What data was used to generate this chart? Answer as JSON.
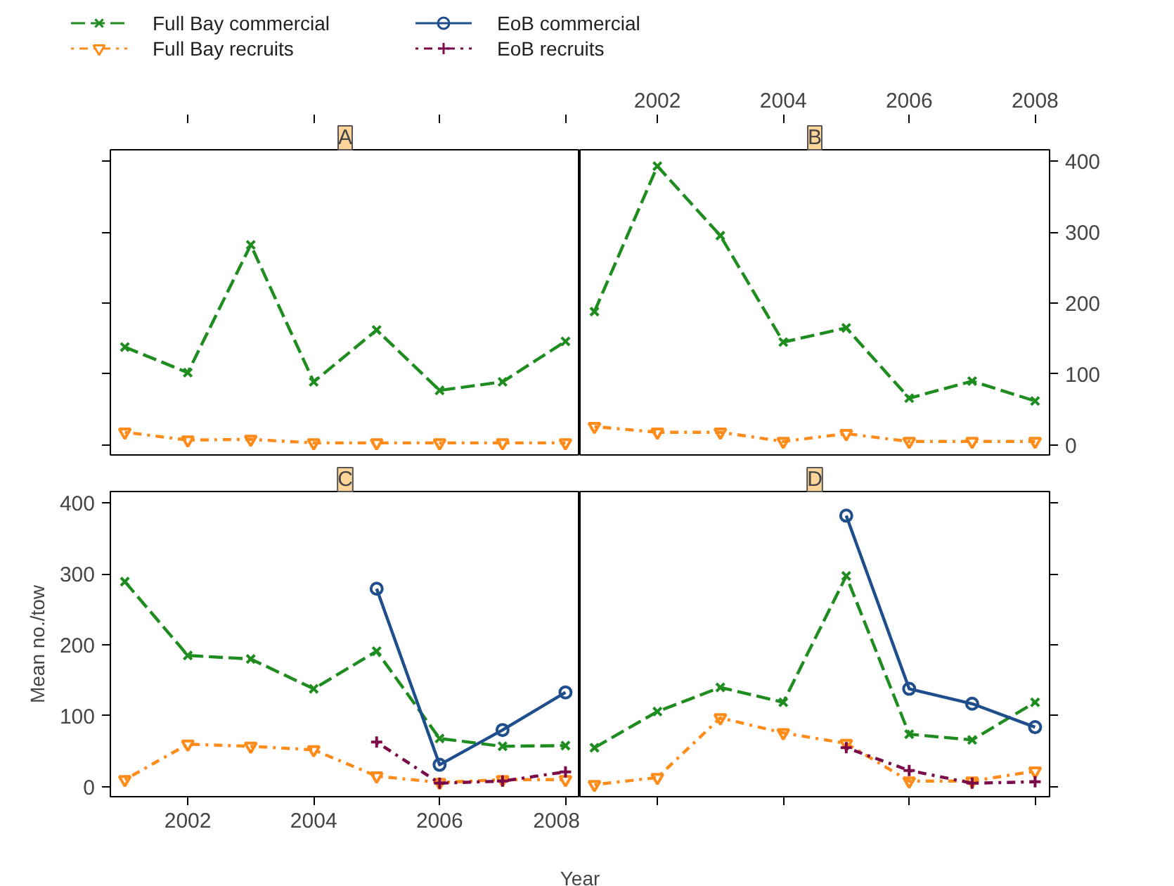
{
  "chart_data": [
    {
      "type": "line",
      "title": "A",
      "x": [
        2001,
        2002,
        2003,
        2004,
        2005,
        2006,
        2007,
        2008
      ],
      "xlim": [
        2000.77,
        2008.23
      ],
      "xticks": [
        2002,
        2004,
        2006,
        2008
      ],
      "ylim": [
        -14,
        416
      ],
      "yticks": [
        0,
        100,
        200,
        300,
        400
      ],
      "tick_labels": false,
      "series": [
        {
          "color": "#1e8c1e",
          "marker": "x",
          "line_style": "dashed",
          "values": [
            138,
            102,
            282,
            89,
            162,
            77,
            89,
            146
          ]
        },
        {
          "color": "#ff8c1a",
          "marker": "triangle_down",
          "line_style": "dotdash",
          "values": [
            18,
            7,
            8,
            3,
            3,
            3,
            3,
            3
          ]
        }
      ]
    },
    {
      "type": "line",
      "title": "B",
      "x": [
        2001,
        2002,
        2003,
        2004,
        2005,
        2006,
        2007,
        2008
      ],
      "xlim": [
        2000.77,
        2008.23
      ],
      "xticks": [
        2002,
        2004,
        2006,
        2008
      ],
      "ylim": [
        -14,
        416
      ],
      "yticks": [
        0,
        100,
        200,
        300,
        400
      ],
      "series": [
        {
          "color": "#1e8c1e",
          "marker": "x",
          "line_style": "dashed",
          "values": [
            188,
            393,
            295,
            145,
            165,
            66,
            90,
            62
          ]
        },
        {
          "color": "#ff8c1a",
          "marker": "triangle_down",
          "line_style": "dotdash",
          "values": [
            26,
            18,
            18,
            5,
            16,
            5,
            5,
            5
          ]
        }
      ]
    },
    {
      "type": "line",
      "title": "C",
      "xlabel": "Year",
      "ylabel": "Mean no./tow",
      "legend": "top",
      "x": [
        2001,
        2002,
        2003,
        2004,
        2005,
        2006,
        2007,
        2008
      ],
      "xlim": [
        2000.77,
        2008.23
      ],
      "xticks": [
        2002,
        2004,
        2006,
        2008
      ],
      "ylim": [
        -14,
        416
      ],
      "yticks": [
        0,
        100,
        200,
        300,
        400
      ],
      "series": [
        {
          "name": "Full Bay commercial",
          "color": "#1e8c1e",
          "marker": "x",
          "line_style": "dashed",
          "values": [
            289,
            185,
            180,
            138,
            191,
            68,
            57,
            58
          ]
        },
        {
          "name": "Full Bay recruits",
          "color": "#ff8c1a",
          "marker": "triangle_down",
          "line_style": "dotdash",
          "values": [
            10,
            60,
            57,
            52,
            15,
            6,
            10,
            10
          ]
        },
        {
          "name": "EoB commercial",
          "color": "#1f4e8c",
          "marker": "circle",
          "line_style": "solid",
          "x": [
            2005,
            2006,
            2007,
            2008
          ],
          "values": [
            279,
            31,
            80,
            133
          ]
        },
        {
          "name": "EoB recruits",
          "color": "#7a0a4a",
          "marker": "cross",
          "line_style": "dotdash",
          "x": [
            2005,
            2006,
            2007,
            2008
          ],
          "values": [
            63,
            5,
            8,
            21
          ]
        }
      ]
    },
    {
      "type": "line",
      "title": "D",
      "x": [
        2001,
        2002,
        2003,
        2004,
        2005,
        2006,
        2007,
        2008
      ],
      "xlim": [
        2000.77,
        2008.23
      ],
      "xticks": [
        2002,
        2004,
        2006,
        2008
      ],
      "ylim": [
        -14,
        416
      ],
      "yticks": [
        0,
        100,
        200,
        300,
        400
      ],
      "tick_labels": false,
      "series": [
        {
          "color": "#1e8c1e",
          "marker": "x",
          "line_style": "dashed",
          "values": [
            55,
            106,
            140,
            119,
            297,
            74,
            66,
            119
          ]
        },
        {
          "color": "#ff8c1a",
          "marker": "triangle_down",
          "line_style": "dotdash",
          "values": [
            3,
            13,
            97,
            76,
            61,
            8,
            8,
            22
          ]
        },
        {
          "color": "#1f4e8c",
          "marker": "circle",
          "line_style": "solid",
          "x": [
            2005,
            2006,
            2007,
            2008
          ],
          "values": [
            382,
            138,
            117,
            84
          ]
        },
        {
          "color": "#7a0a4a",
          "marker": "cross",
          "line_style": "dotdash",
          "x": [
            2005,
            2006,
            2007,
            2008
          ],
          "values": [
            55,
            23,
            5,
            7
          ]
        }
      ]
    }
  ]
}
